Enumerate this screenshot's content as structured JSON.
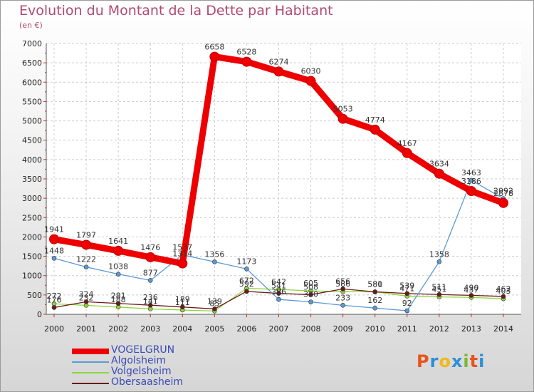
{
  "chart_data": {
    "type": "line",
    "title": "Evolution du Montant de la Dette par Habitant",
    "subtitle": "(en €)",
    "xlabel": "",
    "ylabel": "",
    "x": [
      "2000",
      "2001",
      "2002",
      "2003",
      "2004",
      "2005",
      "2006",
      "2007",
      "2008",
      "2009",
      "2010",
      "2011",
      "2012",
      "2013",
      "2014"
    ],
    "ylim": [
      0,
      7000
    ],
    "yticks": [
      0,
      500,
      1000,
      1500,
      2000,
      2500,
      3000,
      3500,
      4000,
      4500,
      5000,
      5500,
      6000,
      6500,
      7000
    ],
    "grid": true,
    "legend_position": "bottom-left",
    "series": [
      {
        "name": "VOGELGRUN",
        "color": "#ee0000",
        "values": [
          1941,
          1797,
          1641,
          1476,
          1314,
          6658,
          6528,
          6274,
          6030,
          5053,
          4774,
          4167,
          3634,
          3186,
          2878
        ]
      },
      {
        "name": "Algolsheim",
        "color": "#5c9ad4",
        "values": [
          1448,
          1222,
          1038,
          877,
          1537,
          1356,
          1173,
          386,
          320,
          233,
          162,
          92,
          1358,
          3463,
          2992
        ]
      },
      {
        "name": "Volgelsheim",
        "color": "#8dd63a",
        "values": [
          272,
          232,
          188,
          141,
          111,
          85,
          672,
          642,
          605,
          586,
          580,
          471,
          451,
          437,
          403
        ]
      },
      {
        "name": "Obersaasheim",
        "color": "#6b1a1a",
        "values": [
          176,
          324,
          281,
          236,
          189,
          139,
          592,
          541,
          508,
          656,
          581,
          539,
          511,
          490,
          462
        ]
      }
    ]
  },
  "logo": {
    "text": "Proxiti",
    "colors": [
      "#e8541c",
      "#2c8fd8",
      "#f2b81c",
      "#2c8fd8",
      "#7ab82e",
      "#e8541c",
      "#2c8fd8"
    ]
  }
}
